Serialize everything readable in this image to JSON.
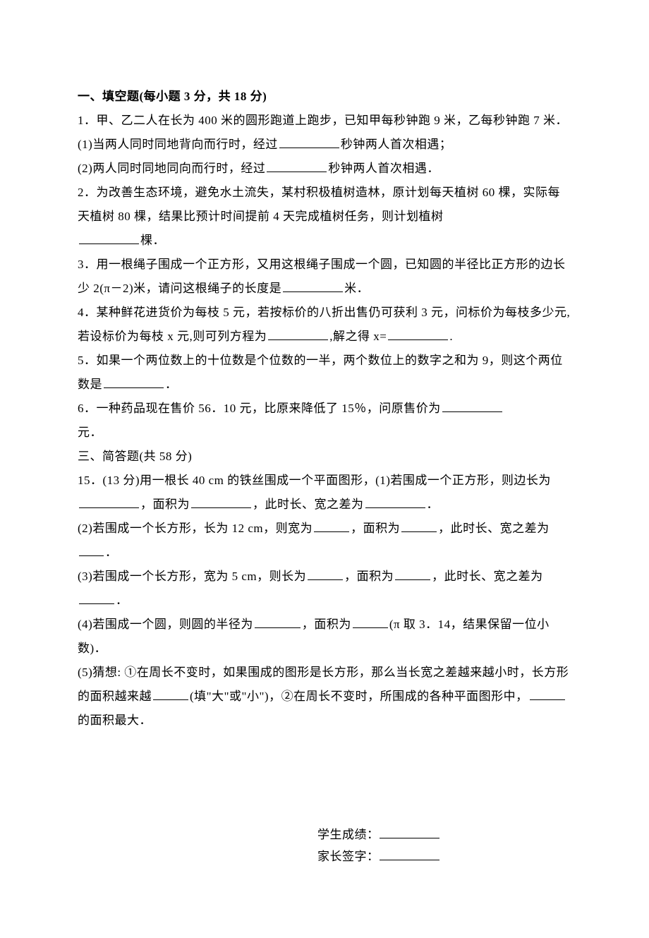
{
  "section1": {
    "title": "一、填空题(每小题 3 分，共 18 分)",
    "q1": {
      "stem": "1．甲、乙二人在长为 400 米的圆形跑道上跑步，已知甲每秒钟跑 9 米，乙每秒钟跑 7 米．",
      "part1a": "(1)当两人同时同地背向而行时，经过",
      "part1b": "秒钟两人首次相遇；",
      "part2a": "(2)两人同时同地同向而行时，经过",
      "part2b": "秒钟两人首次相遇．"
    },
    "q2a": "2．为改善生态环境，避免水土流失，某村积极植树造林，原计划每天植树 60 棵，实际每天植树 80 棵，结果比预计时间提前 4 天完成植树任务，则计划植树",
    "q2b": "棵．",
    "q3a": "3．用一根绳子围成一个正方形，又用这根绳子围成一个圆，已知圆的半径比正方形的边长少 2(π－2)米，请问这根绳子的长度是",
    "q3b": "米．",
    "q4a": "4．某种鲜花进货价为每枝 5 元，若按标价的八折出售仍可获利 3 元，问标价为每枝多少元,若设标价为每枝 x 元,则可列方程为",
    "q4b": ",解之得 x=",
    "q4c": ".",
    "q5a": "5．如果一个两位数上的十位数是个位数的一半，两个数位上的数字之和为 9，则这个两位数是",
    "q5b": "．",
    "q6a": "6．一种药品现在售价 56．10 元，比原来降低了 15％，问原售价为",
    "q6b": "元．"
  },
  "section3": {
    "title": "三、简答题(共 58 分)",
    "q15": {
      "stem_a": "15．(13 分)用一根长 40 cm 的铁丝围成一个平面图形，(1)若围成一个正方形，则边长为",
      "stem_b": "，面积为",
      "stem_c": "，此时长、宽之差为",
      "stem_d": "．",
      "p2a": "(2)若围成一个长方形，长为 12 cm，则宽为",
      "p2b": "，面积为",
      "p2c": "，此时长、宽之差为",
      "p2d": "．",
      "p3a": "(3)若围成一个长方形，宽为 5 cm，则长为",
      "p3b": "，面积为",
      "p3c": "，此时长、宽之差为",
      "p3d": "．",
      "p4a": "(4)若围成一个圆，则圆的半径为",
      "p4b": "，面积为",
      "p4c": "(π 取 3．14，结果保留一位小数)．",
      "p5a": "(5)猜想: ①在周长不变时，如果围成的图形是长方形，那么当长宽之差越来越小时，长方形的面积越来越",
      "p5b": "(填\"大\"或\"小\")，②在周长不变时，所围成的各种平面图形中，",
      "p5c": "的面积最大．"
    }
  },
  "signature": {
    "student": "学生成绩：",
    "parent": "家长签字："
  }
}
